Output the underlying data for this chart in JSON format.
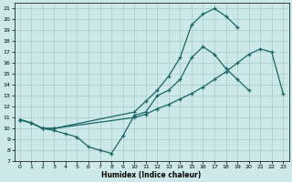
{
  "xlabel": "Humidex (Indice chaleur)",
  "xlim": [
    -0.5,
    23.5
  ],
  "ylim": [
    7,
    21.5
  ],
  "yticks": [
    7,
    8,
    9,
    10,
    11,
    12,
    13,
    14,
    15,
    16,
    17,
    18,
    19,
    20,
    21
  ],
  "xticks": [
    0,
    1,
    2,
    3,
    4,
    5,
    6,
    7,
    8,
    9,
    10,
    11,
    12,
    13,
    14,
    15,
    16,
    17,
    18,
    19,
    20,
    21,
    22,
    23
  ],
  "bg_color": "#cce8e8",
  "line_color": "#1a6666",
  "grid_color": "#aacccc",
  "lines": [
    {
      "x": [
        0,
        1,
        2,
        3,
        4,
        5,
        6,
        7,
        8,
        9,
        10,
        11,
        12,
        13,
        14,
        15,
        16,
        17,
        18,
        19,
        20
      ],
      "y": [
        10.8,
        10.5,
        10.0,
        9.8,
        9.5,
        9.2,
        8.3,
        8.0,
        7.7,
        9.3,
        11.2,
        11.5,
        13.0,
        13.5,
        14.5,
        16.5,
        17.5,
        16.8,
        15.5,
        14.5,
        13.5
      ]
    },
    {
      "x": [
        0,
        1,
        2,
        3,
        10,
        11,
        12,
        13,
        14,
        15,
        16,
        17,
        18,
        19,
        20,
        21,
        22,
        23
      ],
      "y": [
        10.8,
        10.5,
        10.0,
        10.0,
        11.0,
        11.3,
        11.8,
        12.2,
        12.7,
        13.2,
        13.8,
        14.5,
        15.2,
        16.0,
        16.8,
        17.3,
        17.0,
        13.2
      ]
    },
    {
      "x": [
        0,
        1,
        2,
        3,
        10,
        11,
        12,
        13,
        14,
        15,
        16,
        17,
        18,
        19
      ],
      "y": [
        10.8,
        10.5,
        10.0,
        10.0,
        11.5,
        12.5,
        13.5,
        14.8,
        16.5,
        19.5,
        20.5,
        21.0,
        20.3,
        19.3
      ]
    }
  ]
}
